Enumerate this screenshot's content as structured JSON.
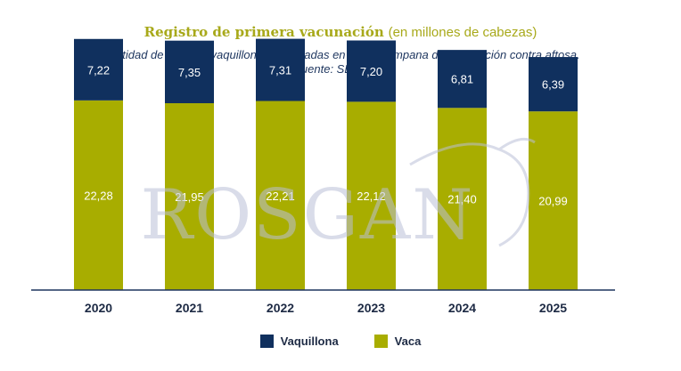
{
  "header": {
    "title": "Registro de primera vacunación",
    "title_unit": "(en millones de cabezas)",
    "subtitle_line1": "Cantidad de Vacas y vaquillonas registradas en la 1ra campana de vacunación contra aftosa.",
    "subtitle_line2": "Fuente: SENASA."
  },
  "watermark": {
    "text": "ROSGAN"
  },
  "colors": {
    "vaca": "#a8ad00",
    "vaquillona": "#10305e",
    "axis": "#1d355e",
    "watermark": "#b9bfd7"
  },
  "chart_data": {
    "type": "bar",
    "stacked": true,
    "categories": [
      "2020",
      "2021",
      "2022",
      "2023",
      "2024",
      "2025"
    ],
    "series": [
      {
        "name": "Vaca",
        "values": [
          22.28,
          21.95,
          22.21,
          22.12,
          21.4,
          20.99
        ],
        "labels": [
          "22,28",
          "21,95",
          "22,21",
          "22,12",
          "21,40",
          "20,99"
        ]
      },
      {
        "name": "Vaquillona",
        "values": [
          7.22,
          7.35,
          7.31,
          7.2,
          6.81,
          6.39
        ],
        "labels": [
          "7,22",
          "7,35",
          "7,31",
          "7,20",
          "6,81",
          "6,39"
        ]
      }
    ],
    "ylim": [
      0,
      30
    ],
    "grid": false,
    "legend_position": "bottom-center"
  }
}
